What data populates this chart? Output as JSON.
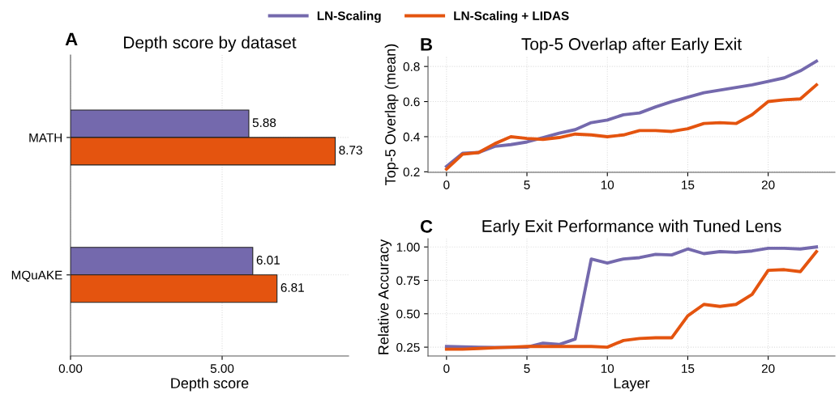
{
  "chart_data": [
    {
      "type": "bar",
      "orientation": "horizontal",
      "title": "Depth score by dataset",
      "xlabel": "Depth score",
      "annotations": [
        "A"
      ],
      "categories": [
        "MATH",
        "MQuAKE"
      ],
      "xlim": [
        0,
        9.17
      ],
      "xticks": [
        {
          "value": 0,
          "label": "0.00"
        },
        {
          "value": 5,
          "label": "5.00"
        }
      ],
      "grid": true,
      "data_labels": true,
      "legend": "top",
      "series": [
        {
          "name": "LN-Scaling",
          "color": "#7469ad",
          "values": [
            5.88,
            6.01
          ]
        },
        {
          "name": "LN-Scaling + LIDAS",
          "color": "#e4540f",
          "values": [
            8.73,
            6.81
          ]
        }
      ]
    },
    {
      "type": "line",
      "title": "Top-5 Overlap after Early Exit",
      "ylabel": "Top-5 Overlap (mean)",
      "annotations": [
        "B"
      ],
      "x": [
        0,
        1,
        2,
        3,
        4,
        5,
        6,
        7,
        8,
        9,
        10,
        11,
        12,
        13,
        14,
        15,
        16,
        17,
        18,
        19,
        20,
        21,
        22,
        23
      ],
      "xlim": [
        -1.15,
        24.15
      ],
      "xticks": [
        0,
        5,
        10,
        15,
        20
      ],
      "ylim": [
        0.197,
        0.856
      ],
      "yticks": [
        0.2,
        0.4,
        0.6,
        0.8
      ],
      "grid": true,
      "series": [
        {
          "color": "#7469ad",
          "values": [
            0.23,
            0.305,
            0.31,
            0.345,
            0.355,
            0.37,
            0.395,
            0.42,
            0.44,
            0.48,
            0.495,
            0.525,
            0.535,
            0.57,
            0.6,
            0.625,
            0.65,
            0.665,
            0.68,
            0.695,
            0.715,
            0.735,
            0.775,
            0.83
          ]
        },
        {
          "color": "#e4540f",
          "values": [
            0.215,
            0.3,
            0.31,
            0.36,
            0.4,
            0.39,
            0.385,
            0.395,
            0.415,
            0.41,
            0.4,
            0.41,
            0.435,
            0.435,
            0.43,
            0.445,
            0.475,
            0.48,
            0.475,
            0.525,
            0.6,
            0.61,
            0.615,
            0.695
          ]
        }
      ]
    },
    {
      "type": "line",
      "title": "Early Exit Performance with Tuned Lens",
      "xlabel": "Layer",
      "ylabel": "Relative Accuracy",
      "annotations": [
        "C"
      ],
      "x": [
        0,
        1,
        2,
        3,
        4,
        5,
        6,
        7,
        8,
        9,
        10,
        11,
        12,
        13,
        14,
        15,
        16,
        17,
        18,
        19,
        20,
        21,
        22,
        23
      ],
      "xlim": [
        -1.15,
        24.15
      ],
      "xticks": [
        0,
        5,
        10,
        15,
        20
      ],
      "ylim": [
        0.184,
        1.062
      ],
      "yticks": [
        {
          "value": 0.25,
          "label": "0.25"
        },
        {
          "value": 0.5,
          "label": "0.50"
        },
        {
          "value": 0.75,
          "label": "0.75"
        },
        {
          "value": 1.0,
          "label": "1.00"
        }
      ],
      "grid": true,
      "series": [
        {
          "color": "#7469ad",
          "values": [
            0.255,
            0.252,
            0.25,
            0.248,
            0.248,
            0.25,
            0.28,
            0.27,
            0.31,
            0.91,
            0.88,
            0.91,
            0.92,
            0.945,
            0.94,
            0.985,
            0.95,
            0.965,
            0.96,
            0.97,
            0.99,
            0.99,
            0.985,
            1.0
          ]
        },
        {
          "color": "#e4540f",
          "values": [
            0.235,
            0.235,
            0.24,
            0.245,
            0.25,
            0.255,
            0.255,
            0.255,
            0.255,
            0.255,
            0.25,
            0.3,
            0.315,
            0.32,
            0.32,
            0.485,
            0.57,
            0.555,
            0.57,
            0.645,
            0.825,
            0.83,
            0.815,
            0.965
          ]
        }
      ]
    }
  ]
}
